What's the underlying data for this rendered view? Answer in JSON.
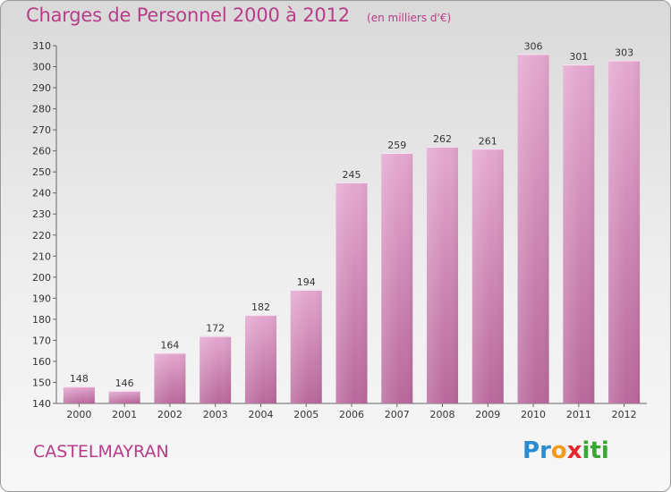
{
  "title": "Charges de Personnel 2000 à 2012",
  "subtitle": "(en milliers d'€)",
  "commune": "CASTELMAYRAN",
  "brand": {
    "letters": [
      "P",
      "r",
      "o",
      "x",
      "i",
      "t",
      "i"
    ],
    "colors": [
      "#2b8ad0",
      "#2b8ad0",
      "#f39a1c",
      "#e8262d",
      "#3aa636",
      "#3aa636",
      "#3aa636"
    ]
  },
  "colors": {
    "accent": "#b83c88",
    "bar_top": "#e4a7cf",
    "bar_bottom": "#b8689c"
  },
  "chart_data": {
    "type": "bar",
    "title": "Charges de Personnel 2000 à 2012",
    "subtitle": "(en milliers d'€)",
    "categories": [
      "2000",
      "2001",
      "2002",
      "2003",
      "2004",
      "2005",
      "2006",
      "2007",
      "2008",
      "2009",
      "2010",
      "2011",
      "2012"
    ],
    "values": [
      148,
      146,
      164,
      172,
      182,
      194,
      245,
      259,
      262,
      261,
      306,
      301,
      303
    ],
    "ylim": [
      140,
      310
    ],
    "yticks": [
      140,
      150,
      160,
      170,
      180,
      190,
      200,
      210,
      220,
      230,
      240,
      250,
      260,
      270,
      280,
      290,
      300,
      310
    ],
    "grid": false,
    "data_labels": true
  }
}
